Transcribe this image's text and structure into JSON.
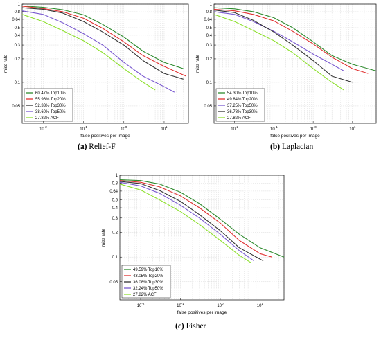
{
  "figure": {
    "panels": [
      {
        "letter": "(a)",
        "caption": "Relief-F",
        "xlabel": "false positives per image",
        "ylabel": "miss rate",
        "legend": [
          "60.47% Top10%",
          "55.96% Top20%",
          "52.33% Top30%",
          "38.60% Top50%",
          "27.82% ACF"
        ]
      },
      {
        "letter": "(b)",
        "caption": "Laplacian",
        "xlabel": "false positives per image",
        "ylabel": "miss rate",
        "legend": [
          "54.30% Top10%",
          "49.84% Top20%",
          "37.25% Top50%",
          "36.78% Top30%",
          "27.82% ACF"
        ]
      },
      {
        "letter": "(c)",
        "caption": "Fisher",
        "xlabel": "false positives per image",
        "ylabel": "miss rate",
        "legend": [
          "49.59% Top10%",
          "43.05% Top20%",
          "36.08% Top30%",
          "32.24% Top50%",
          "27.82% ACF"
        ]
      }
    ]
  },
  "chart_data": [
    {
      "type": "line",
      "xlabel": "false positives per image",
      "ylabel": "miss rate",
      "x_scale": "log",
      "y_scale": "log",
      "xlim": [
        0.003,
        40
      ],
      "ylim": [
        0.03,
        1
      ],
      "x_ticks": [
        "10^-2",
        "10^-1",
        "10^0",
        "10^1"
      ],
      "y_ticks": [
        "0.05",
        "0.1",
        "0.2",
        "0.3",
        "0.4",
        "0.5",
        "0.64",
        "0.8",
        "1"
      ],
      "grid": true,
      "legend_position": "bottom-left",
      "series": [
        {
          "name": "60.47% Top10%",
          "color": "#2e8b2e",
          "x": [
            0.003,
            0.01,
            0.03,
            0.1,
            0.3,
            1,
            3,
            10,
            30
          ],
          "y": [
            0.95,
            0.91,
            0.85,
            0.73,
            0.55,
            0.38,
            0.25,
            0.18,
            0.15
          ]
        },
        {
          "name": "55.96% Top20%",
          "color": "#e03030",
          "x": [
            0.003,
            0.01,
            0.03,
            0.1,
            0.3,
            1,
            3,
            10,
            35
          ],
          "y": [
            0.94,
            0.88,
            0.8,
            0.66,
            0.49,
            0.33,
            0.22,
            0.16,
            0.12
          ]
        },
        {
          "name": "52.33% Top30%",
          "color": "#333333",
          "x": [
            0.003,
            0.01,
            0.03,
            0.1,
            0.3,
            1,
            3,
            10,
            30
          ],
          "y": [
            0.9,
            0.86,
            0.77,
            0.6,
            0.44,
            0.3,
            0.19,
            0.13,
            0.11
          ]
        },
        {
          "name": "38.60% Top50%",
          "color": "#7a5ad0",
          "x": [
            0.003,
            0.01,
            0.03,
            0.1,
            0.3,
            1,
            3,
            10,
            18
          ],
          "y": [
            0.82,
            0.74,
            0.58,
            0.42,
            0.3,
            0.18,
            0.12,
            0.088,
            0.075
          ]
        },
        {
          "name": "27.82% ACF",
          "color": "#8ee02e",
          "x": [
            0.003,
            0.01,
            0.03,
            0.1,
            0.3,
            1,
            3,
            6
          ],
          "y": [
            0.74,
            0.6,
            0.46,
            0.34,
            0.24,
            0.15,
            0.1,
            0.08
          ]
        }
      ]
    },
    {
      "type": "line",
      "xlabel": "false positives per image",
      "ylabel": "miss rate",
      "x_scale": "log",
      "y_scale": "log",
      "xlim": [
        0.003,
        40
      ],
      "ylim": [
        0.03,
        1
      ],
      "x_ticks": [
        "10^-2",
        "10^-1",
        "10^0",
        "10^1"
      ],
      "y_ticks": [
        "0.05",
        "0.1",
        "0.2",
        "0.3",
        "0.4",
        "0.5",
        "0.64",
        "0.8",
        "1"
      ],
      "grid": true,
      "legend_position": "bottom-left",
      "series": [
        {
          "name": "54.30% Top10%",
          "color": "#2e8b2e",
          "x": [
            0.003,
            0.01,
            0.03,
            0.1,
            0.3,
            1,
            3,
            10,
            40
          ],
          "y": [
            0.9,
            0.87,
            0.8,
            0.67,
            0.5,
            0.33,
            0.22,
            0.17,
            0.14
          ]
        },
        {
          "name": "49.84% Top20%",
          "color": "#e03030",
          "x": [
            0.003,
            0.01,
            0.03,
            0.1,
            0.3,
            1,
            3,
            10,
            25
          ],
          "y": [
            0.86,
            0.82,
            0.74,
            0.61,
            0.45,
            0.31,
            0.21,
            0.15,
            0.13
          ]
        },
        {
          "name": "37.25% Top50%",
          "color": "#7a5ad0",
          "x": [
            0.003,
            0.01,
            0.03,
            0.1,
            0.3,
            1,
            3,
            6
          ],
          "y": [
            0.8,
            0.74,
            0.6,
            0.45,
            0.33,
            0.23,
            0.17,
            0.14
          ]
        },
        {
          "name": "36.78% Top30%",
          "color": "#333333",
          "x": [
            0.003,
            0.01,
            0.03,
            0.1,
            0.3,
            1,
            3,
            10
          ],
          "y": [
            0.84,
            0.78,
            0.62,
            0.44,
            0.3,
            0.19,
            0.12,
            0.1
          ]
        },
        {
          "name": "27.82% ACF",
          "color": "#8ee02e",
          "x": [
            0.003,
            0.01,
            0.03,
            0.1,
            0.3,
            1,
            3,
            6
          ],
          "y": [
            0.74,
            0.6,
            0.46,
            0.34,
            0.24,
            0.15,
            0.1,
            0.08
          ]
        }
      ]
    },
    {
      "type": "line",
      "xlabel": "false positives per image",
      "ylabel": "miss rate",
      "x_scale": "log",
      "y_scale": "log",
      "xlim": [
        0.003,
        40
      ],
      "ylim": [
        0.03,
        1
      ],
      "x_ticks": [
        "10^-2",
        "10^-1",
        "10^0",
        "10^1"
      ],
      "y_ticks": [
        "0.05",
        "0.1",
        "0.2",
        "0.3",
        "0.4",
        "0.5",
        "0.64",
        "0.8",
        "1"
      ],
      "grid": true,
      "legend_position": "bottom-left",
      "series": [
        {
          "name": "49.59% Top10%",
          "color": "#2e8b2e",
          "x": [
            0.003,
            0.01,
            0.03,
            0.1,
            0.3,
            1,
            3,
            10,
            40
          ],
          "y": [
            0.88,
            0.86,
            0.78,
            0.62,
            0.45,
            0.29,
            0.19,
            0.13,
            0.1
          ]
        },
        {
          "name": "43.05% Top20%",
          "color": "#e03030",
          "x": [
            0.003,
            0.01,
            0.03,
            0.1,
            0.3,
            1,
            3,
            10,
            20
          ],
          "y": [
            0.86,
            0.82,
            0.72,
            0.56,
            0.4,
            0.26,
            0.16,
            0.11,
            0.1
          ]
        },
        {
          "name": "36.08% Top30%",
          "color": "#333333",
          "x": [
            0.003,
            0.01,
            0.03,
            0.1,
            0.3,
            1,
            3,
            12
          ],
          "y": [
            0.84,
            0.79,
            0.65,
            0.48,
            0.33,
            0.21,
            0.13,
            0.09
          ]
        },
        {
          "name": "32.24% Top50%",
          "color": "#7a5ad0",
          "x": [
            0.003,
            0.01,
            0.03,
            0.1,
            0.3,
            1,
            3,
            7
          ],
          "y": [
            0.82,
            0.74,
            0.6,
            0.43,
            0.3,
            0.19,
            0.12,
            0.09
          ]
        },
        {
          "name": "27.82% ACF",
          "color": "#8ee02e",
          "x": [
            0.003,
            0.01,
            0.03,
            0.1,
            0.3,
            1,
            3,
            6
          ],
          "y": [
            0.78,
            0.66,
            0.5,
            0.36,
            0.25,
            0.16,
            0.105,
            0.085
          ]
        }
      ]
    }
  ]
}
